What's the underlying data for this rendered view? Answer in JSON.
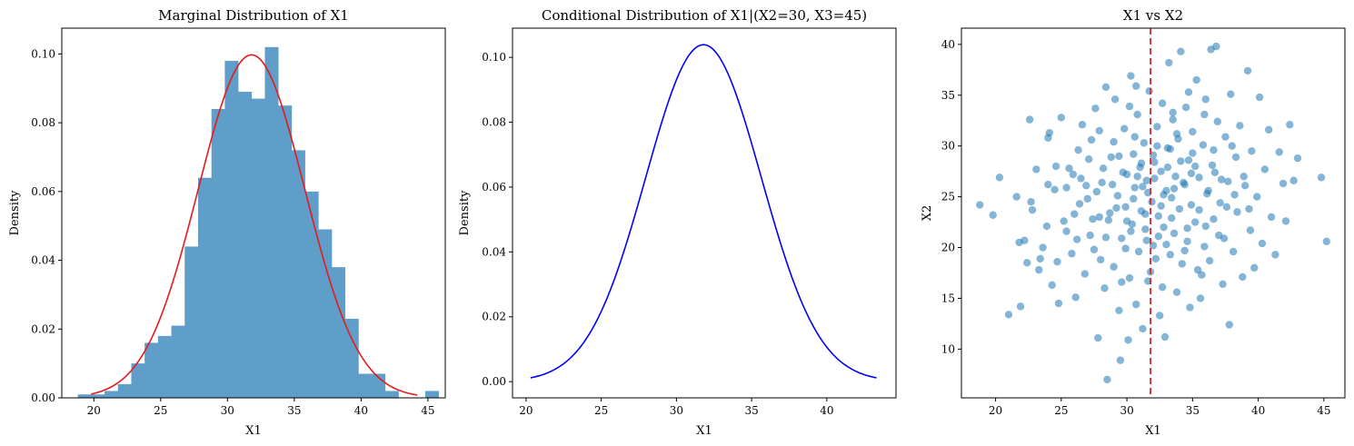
{
  "chart_data": [
    {
      "type": "histogram",
      "title": "Marginal Distribution of X1",
      "xlabel": "X1",
      "ylabel": "Density",
      "xlim": [
        17.6,
        46.3
      ],
      "ylim": [
        0,
        0.1075
      ],
      "xticks": [
        "20",
        "25",
        "30",
        "35",
        "40",
        "45"
      ],
      "yticks": [
        "0.00",
        "0.02",
        "0.04",
        "0.06",
        "0.08",
        "0.10"
      ],
      "bar_color": "#5f9ec9",
      "bins": {
        "edges": [
          18.8,
          19.8,
          20.8,
          21.8,
          22.8,
          23.8,
          24.8,
          25.8,
          26.8,
          27.8,
          28.8,
          29.8,
          30.8,
          31.8,
          32.8,
          33.8,
          34.8,
          35.8,
          36.8,
          37.8,
          38.8,
          39.8,
          40.8,
          41.8,
          42.8,
          43.8,
          44.8,
          45.8
        ],
        "density": [
          0.001,
          0.001,
          0.002,
          0.004,
          0.01,
          0.016,
          0.018,
          0.021,
          0.044,
          0.064,
          0.084,
          0.098,
          0.089,
          0.087,
          0.102,
          0.085,
          0.072,
          0.06,
          0.049,
          0.038,
          0.023,
          0.007,
          0.007,
          0.002,
          0,
          0,
          0.002
        ]
      },
      "curve": {
        "name": "normal pdf",
        "color": "#e41a1c",
        "mean": 31.8,
        "sd": 4.0,
        "x_range": [
          19.8,
          44.2
        ]
      }
    },
    {
      "type": "line",
      "title": "Conditional Distribution of X1|(X2=30, X3=45)",
      "xlabel": "X1",
      "ylabel": "Density",
      "xlim": [
        19.1,
        44.6
      ],
      "ylim": [
        -0.005,
        0.109
      ],
      "xticks": [
        "20",
        "25",
        "30",
        "35",
        "40"
      ],
      "yticks": [
        "0.00",
        "0.02",
        "0.04",
        "0.06",
        "0.08",
        "0.10"
      ],
      "curve": {
        "color": "#0000ff",
        "mean": 31.8,
        "sd": 3.84,
        "x_range": [
          20.3,
          43.3
        ]
      }
    },
    {
      "type": "scatter",
      "title": "X1 vs X2",
      "xlabel": "X1",
      "ylabel": "X2",
      "xlim": [
        17.4,
        46.6
      ],
      "ylim": [
        5.2,
        41.6
      ],
      "xticks": [
        "20",
        "25",
        "30",
        "35",
        "40",
        "45"
      ],
      "yticks": [
        "10",
        "15",
        "20",
        "25",
        "30",
        "35",
        "40"
      ],
      "point_color": "#1f77b4",
      "point_alpha": 0.55,
      "vline": {
        "x": 31.8,
        "color": "#d62728",
        "style": "dashed"
      },
      "points": [
        [
          18.8,
          24.2
        ],
        [
          19.8,
          23.2
        ],
        [
          20.3,
          26.9
        ],
        [
          21.0,
          13.4
        ],
        [
          21.6,
          25.0
        ],
        [
          21.8,
          20.5
        ],
        [
          21.9,
          14.2
        ],
        [
          22.2,
          20.7
        ],
        [
          22.4,
          18.5
        ],
        [
          22.6,
          32.6
        ],
        [
          22.7,
          24.5
        ],
        [
          22.8,
          23.7
        ],
        [
          23.1,
          27.7
        ],
        [
          23.3,
          17.8
        ],
        [
          23.4,
          18.9
        ],
        [
          23.6,
          20.0
        ],
        [
          23.9,
          22.1
        ],
        [
          24.0,
          26.2
        ],
        [
          24.0,
          30.8
        ],
        [
          24.1,
          31.3
        ],
        [
          24.3,
          16.3
        ],
        [
          24.5,
          25.7
        ],
        [
          24.7,
          18.6
        ],
        [
          24.8,
          14.5
        ],
        [
          25.0,
          32.8
        ],
        [
          25.2,
          22.6
        ],
        [
          25.4,
          21.6
        ],
        [
          25.6,
          27.8
        ],
        [
          25.8,
          19.4
        ],
        [
          26.0,
          23.3
        ],
        [
          26.1,
          15.1
        ],
        [
          26.3,
          29.6
        ],
        [
          26.5,
          26.8
        ],
        [
          26.6,
          32.1
        ],
        [
          26.8,
          17.4
        ],
        [
          27.0,
          24.8
        ],
        [
          27.2,
          21.2
        ],
        [
          27.3,
          30.6
        ],
        [
          27.5,
          19.8
        ],
        [
          27.6,
          33.7
        ],
        [
          27.8,
          11.1
        ],
        [
          27.9,
          23.0
        ],
        [
          28.1,
          26.4
        ],
        [
          28.3,
          16.0
        ],
        [
          28.4,
          35.8
        ],
        [
          28.5,
          7.0
        ],
        [
          28.6,
          22.7
        ],
        [
          28.8,
          28.9
        ],
        [
          29.0,
          18.1
        ],
        [
          29.1,
          34.6
        ],
        [
          29.3,
          25.1
        ],
        [
          29.4,
          13.8
        ],
        [
          29.5,
          8.9
        ],
        [
          29.6,
          20.9
        ],
        [
          29.8,
          31.7
        ],
        [
          29.9,
          24.0
        ],
        [
          30.0,
          27.2
        ],
        [
          30.1,
          10.9
        ],
        [
          30.2,
          17.0
        ],
        [
          30.3,
          36.9
        ],
        [
          30.4,
          22.3
        ],
        [
          30.5,
          29.2
        ],
        [
          30.6,
          25.9
        ],
        [
          30.7,
          14.4
        ],
        [
          30.8,
          33.1
        ],
        [
          30.9,
          19.6
        ],
        [
          31.0,
          27.9
        ],
        [
          31.1,
          23.6
        ],
        [
          31.2,
          12.0
        ],
        [
          31.3,
          30.3
        ],
        [
          31.4,
          21.8
        ],
        [
          31.5,
          26.6
        ],
        [
          31.6,
          16.7
        ],
        [
          31.7,
          35.4
        ],
        [
          31.9,
          24.5
        ],
        [
          32.0,
          20.2
        ],
        [
          32.1,
          28.4
        ],
        [
          32.2,
          18.9
        ],
        [
          32.3,
          31.9
        ],
        [
          32.4,
          23.1
        ],
        [
          32.5,
          13.3
        ],
        [
          32.6,
          27.5
        ],
        [
          32.7,
          34.2
        ],
        [
          32.8,
          22.0
        ],
        [
          32.9,
          11.2
        ],
        [
          33.0,
          25.6
        ],
        [
          33.1,
          29.8
        ],
        [
          33.2,
          38.2
        ],
        [
          33.3,
          19.3
        ],
        [
          33.4,
          24.9
        ],
        [
          33.5,
          32.6
        ],
        [
          33.6,
          21.4
        ],
        [
          33.7,
          27.0
        ],
        [
          33.8,
          15.6
        ],
        [
          33.9,
          30.7
        ],
        [
          34.0,
          23.8
        ],
        [
          34.1,
          39.3
        ],
        [
          34.2,
          18.4
        ],
        [
          34.4,
          26.2
        ],
        [
          34.5,
          33.8
        ],
        [
          34.6,
          20.6
        ],
        [
          34.7,
          28.6
        ],
        [
          34.8,
          14.1
        ],
        [
          34.9,
          24.2
        ],
        [
          35.0,
          31.4
        ],
        [
          35.2,
          22.5
        ],
        [
          35.3,
          36.5
        ],
        [
          35.4,
          17.8
        ],
        [
          35.5,
          26.9
        ],
        [
          35.6,
          15.0
        ],
        [
          35.8,
          30.1
        ],
        [
          35.9,
          20.1
        ],
        [
          36.0,
          34.6
        ],
        [
          36.1,
          25.3
        ],
        [
          36.3,
          18.7
        ],
        [
          36.4,
          39.5
        ],
        [
          36.5,
          28.1
        ],
        [
          36.6,
          22.8
        ],
        [
          36.8,
          39.8
        ],
        [
          36.9,
          32.4
        ],
        [
          37.0,
          21.2
        ],
        [
          37.2,
          26.7
        ],
        [
          37.3,
          16.4
        ],
        [
          37.5,
          30.9
        ],
        [
          37.6,
          24.0
        ],
        [
          37.8,
          12.4
        ],
        [
          37.9,
          35.1
        ],
        [
          38.1,
          19.6
        ],
        [
          38.3,
          28.9
        ],
        [
          38.4,
          23.5
        ],
        [
          38.6,
          32.0
        ],
        [
          38.8,
          17.1
        ],
        [
          39.0,
          26.1
        ],
        [
          39.2,
          37.4
        ],
        [
          39.4,
          21.7
        ],
        [
          39.5,
          29.5
        ],
        [
          39.7,
          18.0
        ],
        [
          39.9,
          25.0
        ],
        [
          40.1,
          34.8
        ],
        [
          40.3,
          20.4
        ],
        [
          40.5,
          27.7
        ],
        [
          40.8,
          31.6
        ],
        [
          41.0,
          23.0
        ],
        [
          41.3,
          19.3
        ],
        [
          41.6,
          29.4
        ],
        [
          41.9,
          26.3
        ],
        [
          42.1,
          22.6
        ],
        [
          42.4,
          32.1
        ],
        [
          42.7,
          26.6
        ],
        [
          43.0,
          28.8
        ],
        [
          44.8,
          26.9
        ],
        [
          45.2,
          20.6
        ],
        [
          28.9,
          26.2
        ],
        [
          29.7,
          27.4
        ],
        [
          30.5,
          24.8
        ],
        [
          31.1,
          28.3
        ],
        [
          31.6,
          25.4
        ],
        [
          32.1,
          26.8
        ],
        [
          32.6,
          24.1
        ],
        [
          33.1,
          27.9
        ],
        [
          33.6,
          25.8
        ],
        [
          34.1,
          28.5
        ],
        [
          29.2,
          23.9
        ],
        [
          30.0,
          22.6
        ],
        [
          30.8,
          27.0
        ],
        [
          31.4,
          23.3
        ],
        [
          32.0,
          29.1
        ],
        [
          32.8,
          25.2
        ],
        [
          33.4,
          22.9
        ],
        [
          34.3,
          26.4
        ],
        [
          34.9,
          27.3
        ],
        [
          35.5,
          23.7
        ],
        [
          27.7,
          25.5
        ],
        [
          28.2,
          27.8
        ],
        [
          28.7,
          23.4
        ],
        [
          29.4,
          29.0
        ],
        [
          30.3,
          21.6
        ],
        [
          31.2,
          26.0
        ],
        [
          32.4,
          21.1
        ],
        [
          33.3,
          29.7
        ],
        [
          34.6,
          21.9
        ],
        [
          35.2,
          28.0
        ],
        [
          26.9,
          26.1
        ],
        [
          27.4,
          22.8
        ],
        [
          36.2,
          25.6
        ],
        [
          36.7,
          27.4
        ],
        [
          37.1,
          24.4
        ],
        [
          26.4,
          24.3
        ],
        [
          37.7,
          26.5
        ],
        [
          25.9,
          27.2
        ],
        [
          38.2,
          25.2
        ],
        [
          29.0,
          30.4
        ],
        [
          30.6,
          30.9
        ],
        [
          32.3,
          30.0
        ],
        [
          33.8,
          31.2
        ],
        [
          35.0,
          29.3
        ],
        [
          28.4,
          21.0
        ],
        [
          29.9,
          19.9
        ],
        [
          31.5,
          20.7
        ],
        [
          33.0,
          20.3
        ],
        [
          34.4,
          19.7
        ],
        [
          36.0,
          22.1
        ],
        [
          27.1,
          28.7
        ],
        [
          36.6,
          29.6
        ],
        [
          28.0,
          18.8
        ],
        [
          37.4,
          20.9
        ],
        [
          30.2,
          33.9
        ],
        [
          34.7,
          35.3
        ],
        [
          25.4,
          25.9
        ],
        [
          38.9,
          27.0
        ],
        [
          31.8,
          17.6
        ],
        [
          32.7,
          16.1
        ],
        [
          29.6,
          16.6
        ],
        [
          35.7,
          17.3
        ],
        [
          24.6,
          28.0
        ],
        [
          39.3,
          23.8
        ],
        [
          26.2,
          20.8
        ],
        [
          38.0,
          30.0
        ],
        [
          27.9,
          31.5
        ],
        [
          33.5,
          33.3
        ],
        [
          30.7,
          35.9
        ],
        [
          35.9,
          33.1
        ]
      ]
    }
  ]
}
